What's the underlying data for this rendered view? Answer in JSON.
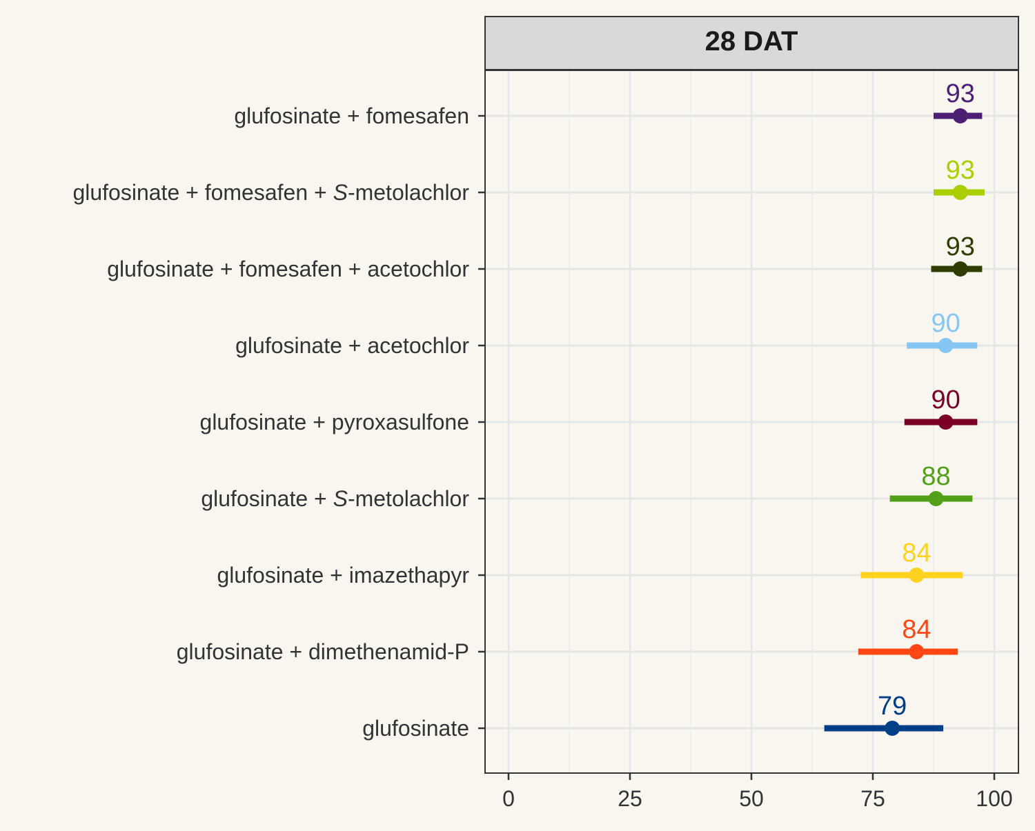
{
  "chart_data": {
    "type": "dot-errorbar",
    "facet_label": "28 DAT",
    "xlim": [
      -5,
      105
    ],
    "x_ticks": [
      "0",
      "25",
      "50",
      "75",
      "100"
    ],
    "x_tick_values": [
      0,
      25,
      50,
      75,
      100
    ],
    "grid": true,
    "categories": [
      {
        "prefix": "glufosinate + fomesafen",
        "italic": "",
        "suffix": ""
      },
      {
        "prefix": "glufosinate + fomesafen + ",
        "italic": "S",
        "suffix": "-metolachlor"
      },
      {
        "prefix": "glufosinate + fomesafen + acetochlor",
        "italic": "",
        "suffix": ""
      },
      {
        "prefix": "glufosinate + acetochlor",
        "italic": "",
        "suffix": ""
      },
      {
        "prefix": "glufosinate + pyroxasulfone",
        "italic": "",
        "suffix": ""
      },
      {
        "prefix": "glufosinate + ",
        "italic": "S",
        "suffix": "-metolachlor"
      },
      {
        "prefix": "glufosinate + imazethapyr",
        "italic": "",
        "suffix": ""
      },
      {
        "prefix": "glufosinate + dimethenamid-P",
        "italic": "",
        "suffix": ""
      },
      {
        "prefix": "glufosinate",
        "italic": "",
        "suffix": ""
      }
    ],
    "values": [
      93,
      93,
      93,
      90,
      90,
      88,
      84,
      84,
      79
    ],
    "labels": [
      "93",
      "93",
      "93",
      "90",
      "90",
      "88",
      "84",
      "84",
      "79"
    ],
    "lower": [
      87.5,
      87.5,
      87,
      82,
      81.5,
      78.5,
      72.5,
      72,
      65
    ],
    "upper": [
      97.5,
      98,
      97.5,
      96.5,
      96.5,
      95.5,
      93.5,
      92.5,
      89.5
    ],
    "colors": [
      "#4b1f73",
      "#aacf00",
      "#2e3d00",
      "#86c6f4",
      "#7a0026",
      "#52a018",
      "#ffd21f",
      "#ff4614",
      "#003f88"
    ]
  }
}
